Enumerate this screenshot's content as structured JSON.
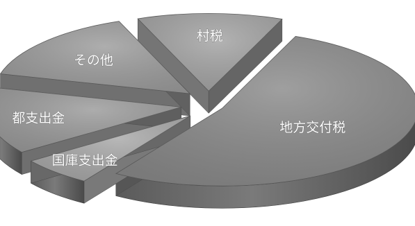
{
  "chart_data": {
    "type": "pie",
    "style": "3d-exploded",
    "legend": "none",
    "categories": [
      "地方交付税",
      "国庫支出金",
      "都支出金",
      "その他",
      "村税"
    ],
    "values": [
      53,
      6,
      14,
      15,
      12
    ],
    "colors": [
      "#8a8a8a",
      "#a8a8a8",
      "#9a9a9a",
      "#9c9c9c",
      "#a3a3a3"
    ]
  }
}
